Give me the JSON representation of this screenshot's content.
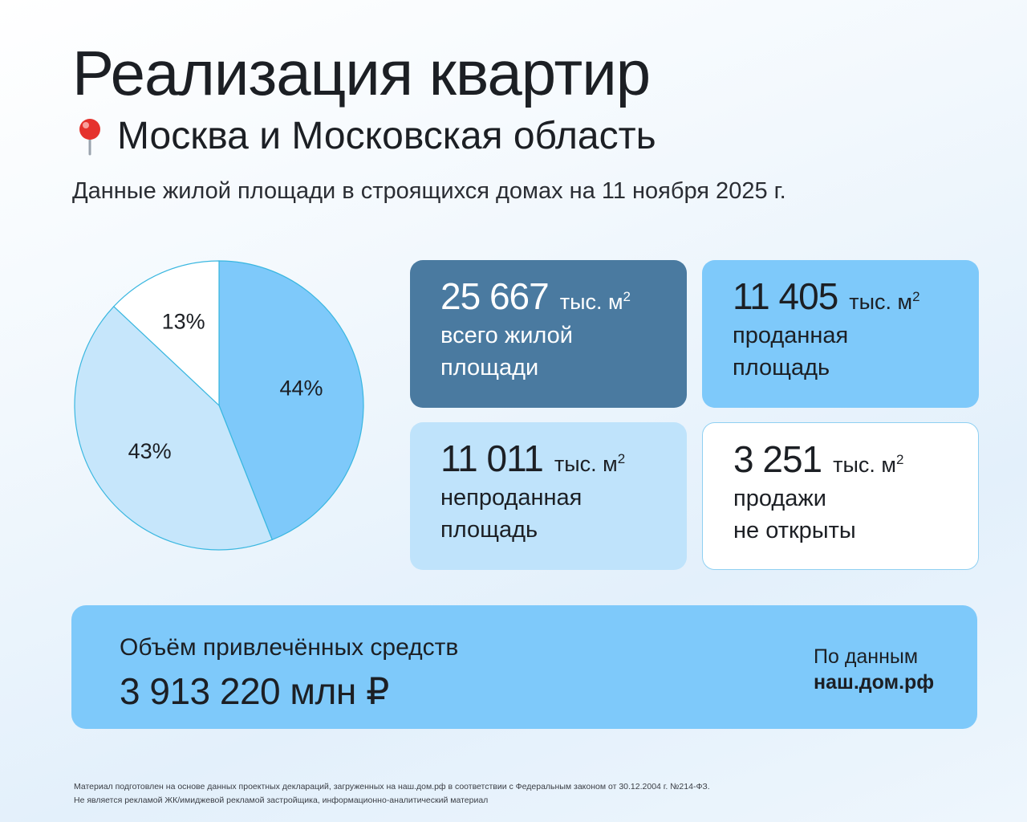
{
  "header": {
    "title": "Реализация квартир",
    "region": "Москва и Московская область",
    "subtitle": "Данные жилой площади в строящихся домах на 11 ноября 2025 г."
  },
  "cards": [
    {
      "value": "25 667",
      "unit": "тыс. м",
      "unit_sup": "2",
      "label": "всего жилой\nплощади"
    },
    {
      "value": "11 405",
      "unit": "тыс. м",
      "unit_sup": "2",
      "label": "проданная\nплощадь"
    },
    {
      "value": "11 011",
      "unit": "тыс. м",
      "unit_sup": "2",
      "label": "непроданная\nплощадь"
    },
    {
      "value": "3 251",
      "unit": "тыс. м",
      "unit_sup": "2",
      "label": "продажи\nне открыты"
    }
  ],
  "funds": {
    "label": "Объём привлечённых средств",
    "value": "3 913 220 млн ₽"
  },
  "source": {
    "prefix": "По данным",
    "name": "наш.дом.рф"
  },
  "footnote": {
    "line1": "Материал подготовлен на основе данных проектных деклараций, загруженных на наш.дом.рф в соответствии с Федеральным законом от 30.12.2004 г. №214-ФЗ.",
    "line2": "Не является рекламой ЖК/имиджевой рекламой застройщика, информационно-аналитический материал"
  },
  "colors": {
    "sold": "#7ec9fa",
    "unsold": "#c6e6fb",
    "not_open": "#ffffff",
    "stroke": "#3ab7e0",
    "total_card": "#4a7aa0"
  },
  "chart_data": {
    "type": "pie",
    "slices": [
      {
        "category": "проданная площадь",
        "value": 44,
        "label": "44%",
        "color": "#7ec9fa"
      },
      {
        "category": "непроданная площадь",
        "value": 43,
        "label": "43%",
        "color": "#c6e6fb"
      },
      {
        "category": "продажи не открыты",
        "value": 13,
        "label": "13%",
        "color": "#ffffff"
      }
    ],
    "start": "top",
    "direction": "clockwise"
  }
}
